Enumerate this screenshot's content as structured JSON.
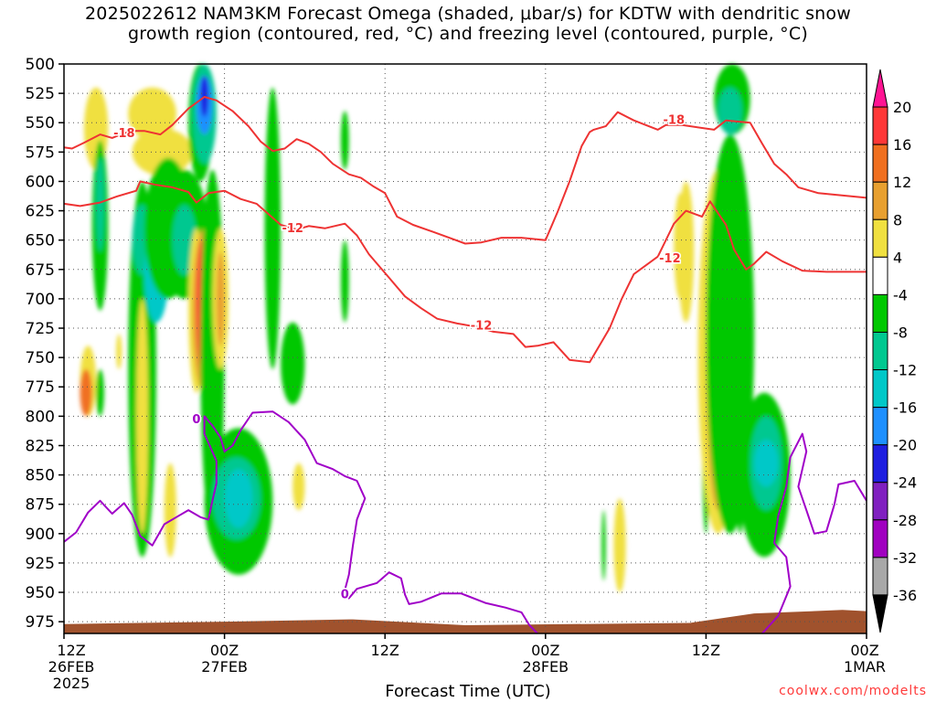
{
  "title_lines": [
    "2025022612 NAM3KM Forecast Omega (shaded, μbar/s) for KDTW with dendritic snow",
    "growth region (contoured, red, °C) and freezing level (contoured, purple, °C)"
  ],
  "x_axis_title": "Forecast Time (UTC)",
  "credit": "coolwx.com/modelts",
  "chart_data": {
    "type": "heatmap",
    "variable": "Omega (μbar/s)",
    "y_axis": {
      "label": "",
      "ticks": [
        500,
        525,
        550,
        575,
        600,
        625,
        650,
        675,
        700,
        725,
        750,
        775,
        800,
        825,
        850,
        875,
        900,
        925,
        950,
        975
      ],
      "range": [
        500,
        985
      ],
      "inverted": true
    },
    "x_axis": {
      "range": [
        "2025-02-26 12Z",
        "2025-03-01 00Z"
      ],
      "ticks": [
        {
          "line1": "12Z",
          "line2": "26FEB",
          "line3": "2025"
        },
        {
          "line1": "00Z",
          "line2": "27FEB",
          "line3": ""
        },
        {
          "line1": "12Z",
          "line2": "",
          "line3": ""
        },
        {
          "line1": "00Z",
          "line2": "28FEB",
          "line3": ""
        },
        {
          "line1": "12Z",
          "line2": "",
          "line3": ""
        },
        {
          "line1": "00Z",
          "line2": "1MAR",
          "line3": ""
        }
      ]
    },
    "grid": true,
    "colorbar": {
      "levels": [
        "20",
        "16",
        "12",
        "8",
        "4",
        "-4",
        "-8",
        "-12",
        "-16",
        "-20",
        "-24",
        "-28",
        "-32",
        "-36"
      ],
      "colors": [
        "#ff1493",
        "#ff3838",
        "#f07020",
        "#e8a030",
        "#f0e040",
        "#ffffff",
        "#00c800",
        "#00c890",
        "#00c8c8",
        "#1e90ff",
        "#1e1ee0",
        "#8020c0",
        "#a000c0",
        "#a8a8a8",
        "#000000"
      ]
    },
    "contours": [
      {
        "name": "dendritic -18 °C",
        "color": "#ee3333",
        "label": "-18",
        "points": [
          [
            0,
            571
          ],
          [
            0.01,
            572
          ],
          [
            0.025,
            567
          ],
          [
            0.045,
            560
          ],
          [
            0.06,
            563
          ],
          [
            0.075,
            559
          ],
          [
            0.085,
            557
          ],
          [
            0.1,
            557
          ],
          [
            0.12,
            560
          ],
          [
            0.135,
            552
          ],
          [
            0.155,
            538
          ],
          [
            0.175,
            528
          ],
          [
            0.19,
            531
          ],
          [
            0.21,
            540
          ],
          [
            0.23,
            553
          ],
          [
            0.245,
            566
          ],
          [
            0.26,
            574
          ],
          [
            0.275,
            572
          ],
          [
            0.29,
            564
          ],
          [
            0.305,
            568
          ],
          [
            0.32,
            575
          ],
          [
            0.335,
            585
          ],
          [
            0.355,
            594
          ],
          [
            0.37,
            597
          ],
          [
            0.385,
            604
          ],
          [
            0.4,
            610
          ],
          [
            0.415,
            630
          ],
          [
            0.435,
            637
          ],
          [
            0.46,
            643
          ],
          [
            0.48,
            648
          ],
          [
            0.5,
            653
          ],
          [
            0.52,
            652
          ],
          [
            0.545,
            648
          ],
          [
            0.57,
            648
          ],
          [
            0.6,
            650
          ],
          [
            0.615,
            626
          ],
          [
            0.63,
            600
          ],
          [
            0.645,
            570
          ],
          [
            0.655,
            558
          ],
          [
            0.66,
            556
          ],
          [
            0.675,
            553
          ],
          [
            0.69,
            541
          ],
          [
            0.71,
            548
          ],
          [
            0.74,
            556
          ],
          [
            0.75,
            552
          ],
          [
            0.77,
            552
          ],
          [
            0.81,
            556
          ],
          [
            0.825,
            548
          ],
          [
            0.855,
            550
          ],
          [
            0.87,
            568
          ],
          [
            0.885,
            585
          ],
          [
            0.9,
            594
          ],
          [
            0.915,
            605
          ],
          [
            0.94,
            610
          ],
          [
            1,
            614
          ]
        ],
        "labels_at": [
          [
            0.075,
            559
          ],
          [
            0.76,
            548
          ]
        ]
      },
      {
        "name": "dendritic -12 °C",
        "color": "#ee3333",
        "label": "-12",
        "points": [
          [
            0,
            619
          ],
          [
            0.02,
            621
          ],
          [
            0.045,
            618
          ],
          [
            0.065,
            613
          ],
          [
            0.09,
            608
          ],
          [
            0.095,
            600
          ],
          [
            0.115,
            603
          ],
          [
            0.135,
            605
          ],
          [
            0.155,
            609
          ],
          [
            0.165,
            618
          ],
          [
            0.18,
            610
          ],
          [
            0.2,
            608
          ],
          [
            0.22,
            615
          ],
          [
            0.24,
            619
          ],
          [
            0.255,
            628
          ],
          [
            0.27,
            637
          ],
          [
            0.29,
            641
          ],
          [
            0.305,
            638
          ],
          [
            0.325,
            640
          ],
          [
            0.35,
            636
          ],
          [
            0.365,
            646
          ],
          [
            0.38,
            662
          ],
          [
            0.4,
            678
          ],
          [
            0.425,
            698
          ],
          [
            0.445,
            708
          ],
          [
            0.465,
            717
          ],
          [
            0.49,
            721
          ],
          [
            0.515,
            724
          ],
          [
            0.535,
            728
          ],
          [
            0.56,
            730
          ],
          [
            0.575,
            741
          ],
          [
            0.59,
            740
          ],
          [
            0.61,
            737
          ],
          [
            0.63,
            752
          ],
          [
            0.655,
            754
          ],
          [
            0.68,
            725
          ],
          [
            0.695,
            700
          ],
          [
            0.71,
            679
          ],
          [
            0.74,
            664
          ],
          [
            0.76,
            636
          ],
          [
            0.775,
            625
          ],
          [
            0.795,
            630
          ],
          [
            0.805,
            617
          ],
          [
            0.825,
            637
          ],
          [
            0.835,
            658
          ],
          [
            0.85,
            675
          ],
          [
            0.86,
            670
          ],
          [
            0.875,
            660
          ],
          [
            0.895,
            668
          ],
          [
            0.92,
            676
          ],
          [
            0.95,
            677
          ],
          [
            1,
            677
          ]
        ],
        "labels_at": [
          [
            0.285,
            640
          ],
          [
            0.52,
            723
          ],
          [
            0.755,
            666
          ]
        ]
      },
      {
        "name": "freezing level 0 °C",
        "color": "#a000c8",
        "label": "0",
        "points": [
          [
            0,
            907
          ],
          [
            0.015,
            899
          ],
          [
            0.03,
            882
          ],
          [
            0.045,
            872
          ],
          [
            0.06,
            883
          ],
          [
            0.075,
            874
          ],
          [
            0.085,
            884
          ],
          [
            0.095,
            902
          ],
          [
            0.11,
            910
          ],
          [
            0.125,
            892
          ],
          [
            0.14,
            886
          ],
          [
            0.155,
            880
          ],
          [
            0.17,
            886
          ],
          [
            0.18,
            888
          ],
          [
            0.185,
            872
          ],
          [
            0.19,
            857
          ],
          [
            0.19,
            838
          ],
          [
            0.175,
            815
          ],
          [
            0.175,
            800
          ],
          [
            0.185,
            808
          ],
          [
            0.195,
            818
          ],
          [
            0.2,
            830
          ],
          [
            0.21,
            825
          ],
          [
            0.22,
            812
          ],
          [
            0.235,
            797
          ],
          [
            0.26,
            796
          ],
          [
            0.28,
            805
          ],
          [
            0.3,
            820
          ],
          [
            0.315,
            840
          ],
          [
            0.335,
            845
          ],
          [
            0.35,
            851
          ],
          [
            0.365,
            855
          ],
          [
            0.375,
            870
          ],
          [
            0.365,
            888
          ],
          [
            0.36,
            910
          ],
          [
            0.355,
            935
          ],
          [
            0.35,
            948
          ],
          [
            0.355,
            955
          ],
          [
            0.365,
            947
          ],
          [
            0.39,
            942
          ],
          [
            0.405,
            933
          ],
          [
            0.42,
            938
          ],
          [
            0.425,
            952
          ],
          [
            0.43,
            960
          ],
          [
            0.445,
            958
          ],
          [
            0.47,
            951
          ],
          [
            0.495,
            951
          ],
          [
            0.525,
            959
          ],
          [
            0.55,
            963
          ],
          [
            0.57,
            967
          ],
          [
            0.58,
            978
          ],
          [
            0.59,
            985
          ]
        ],
        "labels_at": [
          [
            0.165,
            803
          ],
          [
            0.35,
            952
          ]
        ]
      },
      {
        "name": "freezing level 0 °C (right)",
        "color": "#a000c8",
        "label": "",
        "points": [
          [
            0.87,
            985
          ],
          [
            0.89,
            970
          ],
          [
            0.905,
            945
          ],
          [
            0.9,
            920
          ],
          [
            0.885,
            908
          ],
          [
            0.89,
            885
          ],
          [
            0.9,
            860
          ],
          [
            0.905,
            835
          ],
          [
            0.92,
            815
          ],
          [
            0.925,
            830
          ],
          [
            0.915,
            860
          ],
          [
            0.925,
            880
          ],
          [
            0.935,
            900
          ],
          [
            0.95,
            898
          ],
          [
            0.96,
            875
          ],
          [
            0.965,
            858
          ],
          [
            0.985,
            855
          ],
          [
            1,
            872
          ]
        ],
        "labels_at": []
      }
    ]
  }
}
